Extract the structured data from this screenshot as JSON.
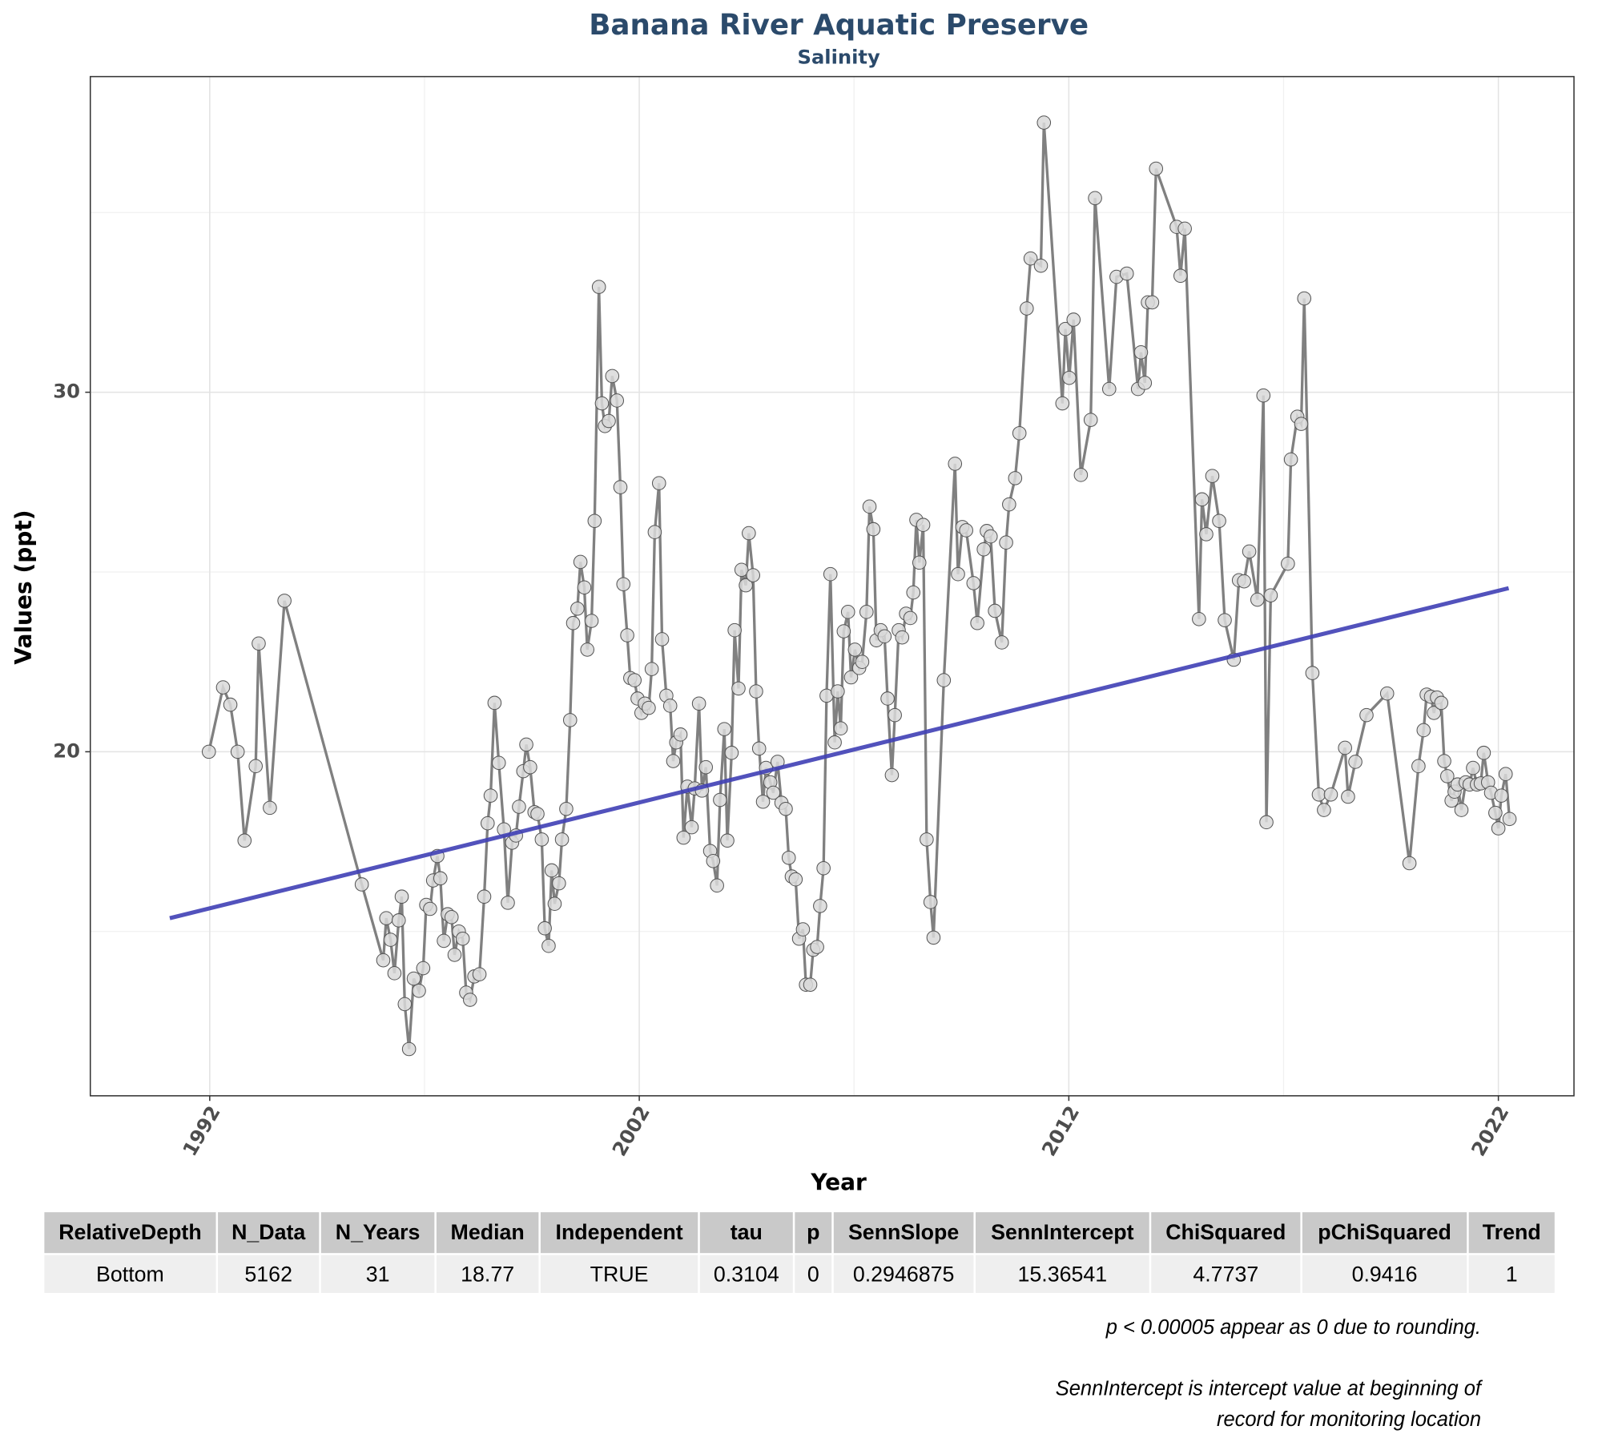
{
  "chart_data": {
    "type": "line",
    "title": "Banana River Aquatic Preserve",
    "subtitle": "Salinity",
    "x_label": "Year",
    "y_label": "Values (ppt)",
    "xlim": [
      1989.22,
      2023.76
    ],
    "ylim": [
      10.43,
      38.78
    ],
    "xticks": [
      1992,
      2002,
      2012,
      2022
    ],
    "yticks": [
      20,
      30
    ],
    "minor_xticks": [
      1997,
      2007,
      2017
    ],
    "minor_yticks": [
      15,
      25,
      35
    ],
    "grid": true,
    "series": [
      {
        "color": "#808080",
        "x": [
          1991.98,
          1992.31,
          1992.48,
          1992.65,
          1992.81,
          1993.07,
          1993.14,
          1993.4,
          1993.74,
          1995.54,
          1996.04,
          1996.11,
          1996.21,
          1996.3,
          1996.4,
          1996.47,
          1996.54,
          1996.64,
          1996.75,
          1996.87,
          1996.97,
          1997.04,
          1997.13,
          1997.2,
          1997.3,
          1997.37,
          1997.45,
          1997.54,
          1997.63,
          1997.7,
          1997.8,
          1997.89,
          1997.97,
          1998.06,
          1998.16,
          1998.28,
          1998.39,
          1998.47,
          1998.54,
          1998.63,
          1998.73,
          1998.85,
          1998.94,
          1999.04,
          1999.13,
          1999.2,
          1999.3,
          1999.37,
          1999.46,
          1999.56,
          1999.63,
          1999.73,
          1999.8,
          1999.89,
          1999.96,
          2000.03,
          2000.13,
          2000.2,
          2000.3,
          2000.39,
          2000.46,
          2000.56,
          2000.63,
          2000.72,
          2000.79,
          2000.89,
          2000.96,
          2001.06,
          2001.13,
          2001.2,
          2001.29,
          2001.37,
          2001.48,
          2001.56,
          2001.63,
          2001.72,
          2001.79,
          2001.89,
          2001.96,
          2002.05,
          2002.13,
          2002.22,
          2002.29,
          2002.36,
          2002.46,
          2002.53,
          2002.63,
          2002.72,
          2002.79,
          2002.86,
          2002.96,
          2003.03,
          2003.12,
          2003.22,
          2003.29,
          2003.39,
          2003.46,
          2003.55,
          2003.65,
          2003.72,
          2003.81,
          2003.88,
          2003.98,
          2004.05,
          2004.15,
          2004.22,
          2004.31,
          2004.38,
          2004.48,
          2004.55,
          2004.65,
          2004.72,
          2004.79,
          2004.88,
          2004.95,
          2005.05,
          2005.12,
          2005.22,
          2005.31,
          2005.41,
          2005.48,
          2005.55,
          2005.64,
          2005.72,
          2005.81,
          2005.88,
          2005.98,
          2006.05,
          2006.14,
          2006.21,
          2006.29,
          2006.36,
          2006.45,
          2006.55,
          2006.62,
          2006.69,
          2006.76,
          2006.86,
          2006.93,
          2007.02,
          2007.12,
          2007.19,
          2007.29,
          2007.36,
          2007.45,
          2007.52,
          2007.62,
          2007.71,
          2007.78,
          2007.88,
          2007.95,
          2008.04,
          2008.12,
          2008.21,
          2008.31,
          2008.38,
          2008.45,
          2008.52,
          2008.61,
          2008.69,
          2008.78,
          2008.85,
          2009.09,
          2009.35,
          2009.42,
          2009.52,
          2009.61,
          2009.78,
          2009.87,
          2010.02,
          2010.09,
          2010.18,
          2010.28,
          2010.44,
          2010.54,
          2010.61,
          2010.75,
          2010.85,
          2011.02,
          2011.11,
          2011.35,
          2011.42,
          2011.85,
          2011.92,
          2012.01,
          2012.11,
          2012.28,
          2012.51,
          2012.61,
          2012.94,
          2013.11,
          2013.35,
          2013.61,
          2013.68,
          2013.77,
          2013.84,
          2013.94,
          2014.03,
          2014.51,
          2014.6,
          2014.7,
          2015.03,
          2015.1,
          2015.2,
          2015.34,
          2015.5,
          2015.63,
          2015.84,
          2015.96,
          2016.08,
          2016.2,
          2016.39,
          2016.53,
          2016.6,
          2016.7,
          2017.1,
          2017.17,
          2017.32,
          2017.41,
          2017.48,
          2017.67,
          2017.82,
          2017.94,
          2018.1,
          2018.43,
          2018.5,
          2018.67,
          2018.93,
          2019.41,
          2019.93,
          2020.14,
          2020.26,
          2020.33,
          2020.43,
          2020.5,
          2020.57,
          2020.67,
          2020.74,
          2020.81,
          2020.91,
          2020.98,
          2021.05,
          2021.14,
          2021.24,
          2021.33,
          2021.41,
          2021.5,
          2021.59,
          2021.66,
          2021.76,
          2021.83,
          2021.93,
          2022.0,
          2022.07,
          2022.17,
          2022.26
        ],
        "values": [
          20.0,
          21.79,
          21.31,
          20.0,
          17.53,
          19.6,
          23.01,
          18.44,
          24.2,
          16.31,
          14.2,
          15.37,
          14.77,
          13.84,
          15.31,
          15.97,
          12.98,
          11.73,
          13.69,
          13.35,
          13.98,
          15.74,
          15.63,
          16.42,
          17.1,
          16.48,
          14.74,
          15.48,
          15.4,
          14.35,
          15.0,
          14.8,
          13.3,
          13.1,
          13.75,
          13.81,
          15.97,
          18.01,
          18.78,
          21.36,
          19.69,
          17.84,
          15.8,
          17.47,
          17.67,
          18.47,
          19.46,
          20.2,
          19.57,
          18.32,
          18.27,
          17.56,
          15.09,
          14.6,
          16.7,
          15.77,
          16.34,
          17.56,
          18.41,
          20.88,
          23.58,
          23.98,
          25.28,
          24.57,
          22.84,
          23.64,
          26.42,
          32.93,
          29.69,
          29.06,
          29.2,
          30.45,
          29.77,
          27.36,
          24.66,
          23.24,
          22.05,
          21.99,
          21.48,
          21.08,
          21.34,
          21.22,
          22.3,
          26.11,
          27.47,
          23.13,
          21.56,
          21.28,
          19.74,
          20.26,
          20.48,
          17.61,
          19.03,
          17.9,
          18.98,
          21.34,
          18.92,
          19.57,
          17.24,
          16.96,
          16.28,
          18.66,
          20.63,
          17.53,
          19.97,
          23.38,
          21.76,
          25.06,
          24.63,
          26.08,
          24.91,
          21.68,
          20.09,
          18.61,
          19.55,
          19.15,
          18.86,
          19.72,
          18.58,
          18.41,
          17.05,
          16.53,
          16.45,
          14.8,
          15.06,
          13.52,
          13.52,
          14.49,
          14.57,
          15.71,
          16.76,
          21.56,
          24.94,
          20.26,
          21.68,
          20.65,
          23.35,
          23.89,
          22.07,
          22.84,
          22.33,
          22.5,
          23.89,
          26.82,
          26.19,
          23.1,
          23.38,
          23.21,
          21.48,
          19.35,
          21.02,
          23.38,
          23.18,
          23.84,
          23.72,
          24.43,
          26.45,
          25.26,
          26.31,
          17.56,
          15.82,
          14.83,
          21.99,
          28.01,
          24.94,
          26.25,
          26.16,
          24.69,
          23.58,
          25.63,
          26.14,
          25.99,
          23.92,
          23.04,
          25.82,
          26.88,
          27.61,
          28.86,
          32.33,
          33.72,
          33.52,
          37.5,
          29.69,
          31.76,
          30.4,
          32.02,
          27.7,
          29.23,
          35.4,
          30.09,
          33.21,
          33.3,
          30.09,
          31.11,
          30.26,
          32.5,
          32.5,
          36.22,
          34.6,
          33.24,
          34.55,
          23.69,
          27.02,
          26.05,
          27.67,
          26.42,
          23.66,
          22.56,
          24.77,
          24.74,
          25.57,
          24.23,
          29.91,
          18.04,
          24.35,
          25.23,
          28.13,
          29.32,
          29.12,
          32.61,
          22.19,
          18.81,
          18.38,
          18.81,
          20.11,
          18.75,
          19.72,
          21.02,
          21.62,
          16.9,
          19.6,
          20.6,
          21.59,
          21.53,
          21.08,
          21.51,
          21.36,
          19.74,
          19.32,
          18.64,
          18.89,
          19.09,
          18.38,
          19.15,
          19.09,
          19.55,
          19.09,
          19.12,
          19.97,
          19.15,
          18.86,
          18.3,
          17.87,
          18.78,
          19.38,
          18.13
        ]
      }
    ],
    "trend": {
      "color": "#3f3fb5",
      "x": [
        1991.07,
        2022.24
      ],
      "values": [
        15.37,
        24.55
      ]
    }
  },
  "table": {
    "headers": [
      "RelativeDepth",
      "N_Data",
      "N_Years",
      "Median",
      "Independent",
      "tau",
      "p",
      "SennSlope",
      "SennIntercept",
      "ChiSquared",
      "pChiSquared",
      "Trend"
    ],
    "rows": [
      [
        "Bottom",
        5162,
        31,
        18.77,
        "TRUE",
        0.3104,
        0,
        0.2946875,
        15.36541,
        4.7737,
        0.9416,
        1
      ]
    ]
  },
  "notes": [
    [
      "p < 0.00005 appear as 0 due to rounding."
    ],
    [
      "SennIntercept is intercept value at beginning of",
      "record for monitoring location"
    ]
  ]
}
